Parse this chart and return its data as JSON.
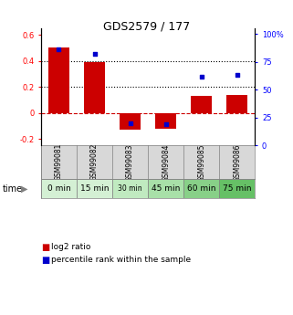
{
  "title": "GDS2579 / 177",
  "samples": [
    "GSM99081",
    "GSM99082",
    "GSM99083",
    "GSM99084",
    "GSM99085",
    "GSM99086"
  ],
  "time_labels": [
    "0 min",
    "15 min",
    "30 min",
    "45 min",
    "60 min",
    "75 min"
  ],
  "time_colors": [
    "#d4f0d4",
    "#d4f0d4",
    "#c0eac0",
    "#a8e0a8",
    "#88d088",
    "#66c066"
  ],
  "log2_values": [
    0.5,
    0.39,
    -0.13,
    -0.12,
    0.13,
    0.14
  ],
  "percentile_values": [
    86,
    82,
    20,
    19,
    62,
    63
  ],
  "bar_color": "#cc0000",
  "dot_color": "#0000cc",
  "ylim_left": [
    -0.25,
    0.65
  ],
  "ylim_right": [
    0,
    105
  ],
  "yticks_left": [
    -0.2,
    0.0,
    0.2,
    0.4,
    0.6
  ],
  "yticks_right": [
    0,
    25,
    50,
    75,
    100
  ],
  "ytick_labels_left": [
    "-0.2",
    "0",
    "0.2",
    "0.4",
    "0.6"
  ],
  "ytick_labels_right": [
    "0",
    "25",
    "50",
    "75",
    "100%"
  ],
  "hlines": [
    0.2,
    0.4
  ],
  "zero_line": 0.0,
  "sample_bg_color": "#d8d8d8",
  "legend_red": "log2 ratio",
  "legend_blue": "percentile rank within the sample"
}
